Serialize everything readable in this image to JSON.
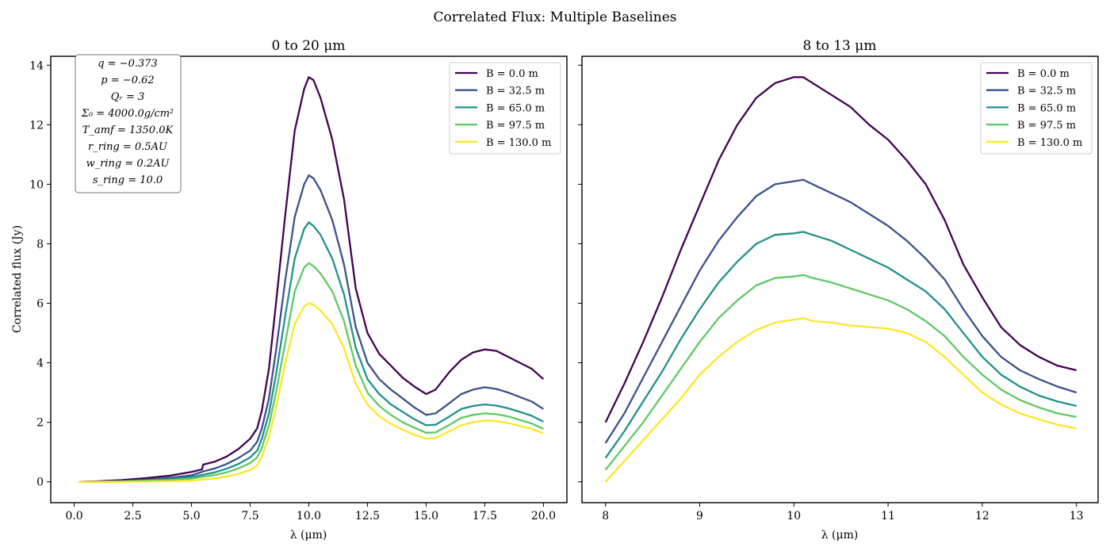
{
  "figure": {
    "suptitle": "Correlated Flux: Multiple Baselines"
  },
  "params_box": [
    "q = −0.373",
    "p = −0.62",
    "Qᵣ = 3",
    "Σ₀ = 4000.0g/cm²",
    "T_amf = 1350.0K",
    "r_ring = 0.5AU",
    "w_ring = 0.2AU",
    "s_ring = 10.0"
  ],
  "series_colors": [
    "#440154",
    "#3b528b",
    "#21918c",
    "#5ec962",
    "#fde725"
  ],
  "chart_data": [
    {
      "type": "line",
      "title": "0 to 20 μm",
      "xlabel": "λ (μm)",
      "ylabel": "Correlated flux (Jy)",
      "xlim": [
        -1.0,
        21.0
      ],
      "ylim": [
        -0.7,
        14.3
      ],
      "xticks": [
        0.0,
        2.5,
        5.0,
        7.5,
        10.0,
        12.5,
        15.0,
        17.5,
        20.0
      ],
      "xtick_labels": [
        "0.0",
        "2.5",
        "5.0",
        "7.5",
        "10.0",
        "12.5",
        "15.0",
        "17.5",
        "20.0"
      ],
      "yticks": [
        0,
        2,
        4,
        6,
        8,
        10,
        12,
        14
      ],
      "ytick_labels": [
        "0",
        "2",
        "4",
        "6",
        "8",
        "10",
        "12",
        "14"
      ],
      "grid": false,
      "legend": "upper-right",
      "series": [
        {
          "name": "B = 0.0 m",
          "x": [
            0.2,
            1.0,
            2.0,
            3.0,
            4.0,
            5.0,
            5.45,
            5.5,
            6.0,
            6.5,
            7.0,
            7.5,
            7.8,
            8.0,
            8.3,
            8.6,
            9.0,
            9.4,
            9.8,
            10.0,
            10.2,
            10.5,
            11.0,
            11.5,
            12.0,
            12.5,
            13.0,
            13.5,
            14.0,
            14.5,
            15.0,
            15.4,
            16.0,
            16.5,
            17.0,
            17.5,
            18.0,
            18.5,
            19.0,
            19.5,
            20.0
          ],
          "y": [
            0.0,
            0.02,
            0.06,
            0.12,
            0.2,
            0.33,
            0.42,
            0.58,
            0.68,
            0.85,
            1.1,
            1.45,
            1.8,
            2.4,
            3.8,
            6.0,
            9.0,
            11.8,
            13.2,
            13.6,
            13.5,
            12.9,
            11.5,
            9.5,
            6.5,
            5.0,
            4.3,
            3.9,
            3.5,
            3.2,
            2.95,
            3.1,
            3.7,
            4.1,
            4.35,
            4.45,
            4.4,
            4.2,
            4.0,
            3.8,
            3.45
          ]
        },
        {
          "name": "B = 32.5 m",
          "x": [
            0.2,
            1.0,
            2.0,
            3.0,
            4.0,
            5.0,
            5.5,
            6.0,
            6.5,
            7.0,
            7.5,
            7.8,
            8.0,
            8.3,
            8.6,
            9.0,
            9.4,
            9.8,
            10.0,
            10.2,
            10.5,
            11.0,
            11.5,
            12.0,
            12.5,
            13.0,
            13.5,
            14.0,
            14.5,
            15.0,
            15.4,
            16.0,
            16.5,
            17.0,
            17.5,
            18.0,
            18.5,
            19.0,
            19.5,
            20.0
          ],
          "y": [
            0.0,
            0.01,
            0.03,
            0.07,
            0.13,
            0.22,
            0.35,
            0.45,
            0.6,
            0.8,
            1.05,
            1.35,
            1.8,
            2.8,
            4.4,
            6.8,
            8.9,
            10.0,
            10.3,
            10.2,
            9.8,
            8.8,
            7.3,
            5.2,
            4.0,
            3.45,
            3.1,
            2.8,
            2.5,
            2.25,
            2.3,
            2.65,
            2.95,
            3.1,
            3.18,
            3.12,
            3.0,
            2.85,
            2.7,
            2.45
          ]
        },
        {
          "name": "B = 65.0 m",
          "x": [
            0.2,
            1.0,
            2.0,
            3.0,
            4.0,
            5.0,
            5.5,
            6.0,
            6.5,
            7.0,
            7.5,
            7.8,
            8.0,
            8.3,
            8.6,
            9.0,
            9.4,
            9.8,
            10.0,
            10.2,
            10.5,
            11.0,
            11.5,
            12.0,
            12.5,
            13.0,
            13.5,
            14.0,
            14.5,
            15.0,
            15.4,
            16.0,
            16.5,
            17.0,
            17.5,
            18.0,
            18.5,
            19.0,
            19.5,
            20.0
          ],
          "y": [
            0.0,
            0.0,
            0.02,
            0.05,
            0.09,
            0.16,
            0.24,
            0.32,
            0.44,
            0.6,
            0.82,
            1.05,
            1.45,
            2.3,
            3.6,
            5.6,
            7.5,
            8.5,
            8.72,
            8.6,
            8.3,
            7.5,
            6.3,
            4.5,
            3.45,
            2.95,
            2.6,
            2.35,
            2.1,
            1.9,
            1.92,
            2.2,
            2.45,
            2.55,
            2.6,
            2.56,
            2.47,
            2.35,
            2.22,
            2.02
          ]
        },
        {
          "name": "B = 97.5 m",
          "x": [
            0.2,
            1.0,
            2.0,
            3.0,
            4.0,
            5.0,
            5.5,
            6.0,
            6.5,
            7.0,
            7.5,
            7.8,
            8.0,
            8.3,
            8.6,
            9.0,
            9.4,
            9.8,
            10.0,
            10.2,
            10.5,
            11.0,
            11.5,
            12.0,
            12.5,
            13.0,
            13.5,
            14.0,
            14.5,
            15.0,
            15.4,
            16.0,
            16.5,
            17.0,
            17.5,
            18.0,
            18.5,
            19.0,
            19.5,
            20.0
          ],
          "y": [
            0.0,
            0.0,
            0.01,
            0.03,
            0.06,
            0.11,
            0.17,
            0.23,
            0.32,
            0.45,
            0.63,
            0.82,
            1.15,
            1.9,
            3.0,
            4.7,
            6.4,
            7.2,
            7.35,
            7.25,
            7.0,
            6.4,
            5.4,
            3.9,
            3.0,
            2.55,
            2.25,
            2.0,
            1.82,
            1.65,
            1.66,
            1.92,
            2.15,
            2.25,
            2.3,
            2.27,
            2.2,
            2.08,
            1.96,
            1.78
          ]
        },
        {
          "name": "B = 130.0 m",
          "x": [
            0.2,
            1.0,
            2.0,
            3.0,
            4.0,
            5.0,
            5.5,
            6.0,
            6.5,
            7.0,
            7.5,
            7.8,
            8.0,
            8.3,
            8.6,
            9.0,
            9.4,
            9.8,
            10.0,
            10.2,
            10.5,
            11.0,
            11.5,
            12.0,
            12.5,
            13.0,
            13.5,
            14.0,
            14.5,
            15.0,
            15.4,
            16.0,
            16.5,
            17.0,
            17.5,
            18.0,
            18.5,
            19.0,
            19.5,
            20.0
          ],
          "y": [
            0.0,
            0.0,
            0.0,
            0.01,
            0.02,
            0.04,
            0.08,
            0.12,
            0.18,
            0.27,
            0.4,
            0.55,
            0.85,
            1.5,
            2.5,
            4.0,
            5.3,
            5.9,
            6.0,
            5.95,
            5.75,
            5.3,
            4.5,
            3.3,
            2.6,
            2.2,
            1.95,
            1.75,
            1.58,
            1.45,
            1.47,
            1.7,
            1.9,
            2.0,
            2.06,
            2.04,
            1.98,
            1.88,
            1.78,
            1.63
          ]
        }
      ]
    },
    {
      "type": "line",
      "title": "8 to 13 μm",
      "xlabel": "λ (μm)",
      "ylabel": "",
      "xlim": [
        7.75,
        13.23
      ],
      "ylim": [
        -0.7,
        14.3
      ],
      "xticks": [
        8,
        9,
        10,
        11,
        12,
        13
      ],
      "xtick_labels": [
        "8",
        "9",
        "10",
        "11",
        "12",
        "13"
      ],
      "yticks": [
        0,
        2,
        4,
        6,
        8,
        10,
        12,
        14
      ],
      "ytick_labels": [],
      "grid": false,
      "legend": "upper-right",
      "series": [
        {
          "name": "B = 0.0 m",
          "x": [
            8.0,
            8.2,
            8.4,
            8.6,
            8.8,
            9.0,
            9.2,
            9.4,
            9.6,
            9.8,
            10.0,
            10.1,
            10.2,
            10.4,
            10.6,
            10.8,
            11.0,
            11.2,
            11.4,
            11.6,
            11.8,
            12.0,
            12.2,
            12.4,
            12.6,
            12.8,
            13.0
          ],
          "y": [
            2.0,
            3.3,
            4.7,
            6.2,
            7.8,
            9.3,
            10.8,
            12.0,
            12.9,
            13.4,
            13.6,
            13.6,
            13.4,
            13.0,
            12.6,
            12.0,
            11.5,
            10.8,
            10.0,
            8.8,
            7.3,
            6.2,
            5.2,
            4.6,
            4.2,
            3.9,
            3.75
          ]
        },
        {
          "name": "B = 32.5 m",
          "x": [
            8.0,
            8.2,
            8.4,
            8.6,
            8.8,
            9.0,
            9.2,
            9.4,
            9.6,
            9.8,
            10.0,
            10.1,
            10.2,
            10.4,
            10.6,
            10.8,
            11.0,
            11.2,
            11.4,
            11.6,
            11.8,
            12.0,
            12.2,
            12.4,
            12.6,
            12.8,
            13.0
          ],
          "y": [
            1.3,
            2.3,
            3.5,
            4.7,
            5.9,
            7.1,
            8.1,
            8.9,
            9.6,
            10.0,
            10.1,
            10.15,
            10.0,
            9.7,
            9.4,
            9.0,
            8.6,
            8.1,
            7.5,
            6.8,
            5.8,
            4.9,
            4.2,
            3.75,
            3.45,
            3.2,
            3.0
          ]
        },
        {
          "name": "B = 65.0 m",
          "x": [
            8.0,
            8.2,
            8.4,
            8.6,
            8.8,
            9.0,
            9.2,
            9.4,
            9.6,
            9.8,
            10.0,
            10.1,
            10.2,
            10.4,
            10.6,
            10.8,
            11.0,
            11.2,
            11.4,
            11.6,
            11.8,
            12.0,
            12.2,
            12.4,
            12.6,
            12.8,
            13.0
          ],
          "y": [
            0.8,
            1.7,
            2.7,
            3.7,
            4.8,
            5.8,
            6.7,
            7.4,
            8.0,
            8.3,
            8.35,
            8.4,
            8.3,
            8.1,
            7.8,
            7.5,
            7.2,
            6.8,
            6.4,
            5.8,
            5.0,
            4.2,
            3.6,
            3.2,
            2.9,
            2.7,
            2.55
          ]
        },
        {
          "name": "B = 97.5 m",
          "x": [
            8.0,
            8.2,
            8.4,
            8.6,
            8.8,
            9.0,
            9.2,
            9.4,
            9.6,
            9.8,
            10.0,
            10.1,
            10.2,
            10.4,
            10.6,
            10.8,
            11.0,
            11.2,
            11.4,
            11.6,
            11.8,
            12.0,
            12.2,
            12.4,
            12.6,
            12.8,
            13.0
          ],
          "y": [
            0.4,
            1.2,
            2.0,
            2.9,
            3.8,
            4.7,
            5.5,
            6.1,
            6.6,
            6.85,
            6.9,
            6.95,
            6.85,
            6.7,
            6.5,
            6.3,
            6.1,
            5.8,
            5.4,
            4.9,
            4.2,
            3.6,
            3.1,
            2.75,
            2.5,
            2.3,
            2.18
          ]
        },
        {
          "name": "B = 130.0 m",
          "x": [
            8.0,
            8.2,
            8.4,
            8.6,
            8.8,
            9.0,
            9.2,
            9.4,
            9.6,
            9.8,
            10.0,
            10.1,
            10.2,
            10.4,
            10.6,
            10.8,
            11.0,
            11.2,
            11.4,
            11.6,
            11.8,
            12.0,
            12.2,
            12.4,
            12.6,
            12.8,
            13.0
          ],
          "y": [
            0.0,
            0.7,
            1.4,
            2.1,
            2.8,
            3.6,
            4.2,
            4.7,
            5.1,
            5.35,
            5.45,
            5.5,
            5.4,
            5.35,
            5.25,
            5.2,
            5.15,
            5.0,
            4.7,
            4.2,
            3.6,
            3.0,
            2.6,
            2.3,
            2.1,
            1.92,
            1.8
          ]
        }
      ]
    }
  ]
}
